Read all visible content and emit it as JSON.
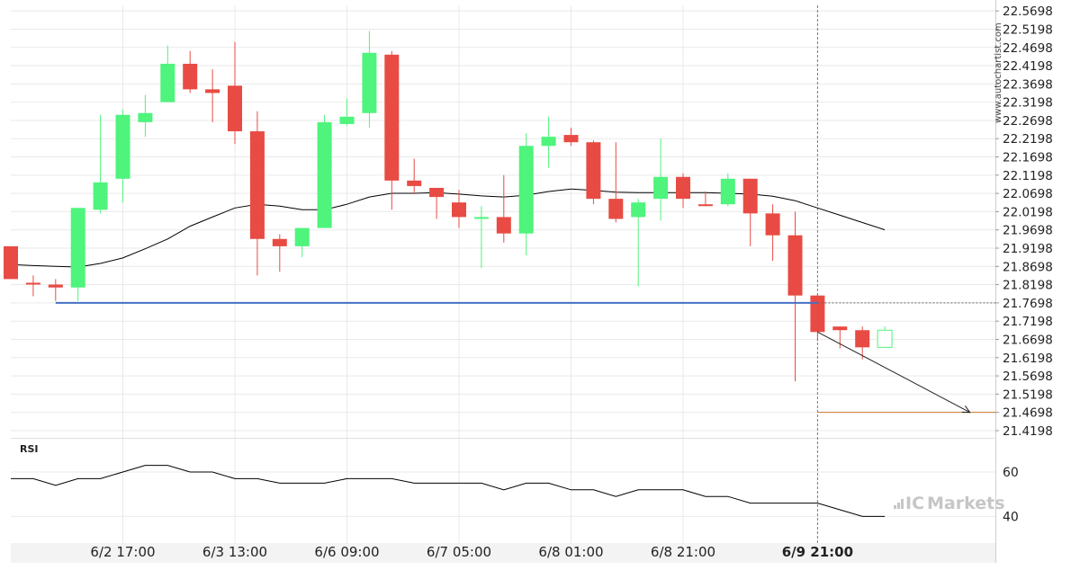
{
  "chart_data": {
    "type": "candlestick",
    "y_axis": {
      "ticks": [
        "22.5698",
        "22.5198",
        "22.4698",
        "22.4198",
        "22.3698",
        "22.3198",
        "22.2698",
        "22.2198",
        "22.1698",
        "22.1198",
        "22.0698",
        "22.0198",
        "21.9698",
        "21.9198",
        "21.8698",
        "21.8198",
        "21.7698",
        "21.7198",
        "21.6698",
        "21.6198",
        "21.5698",
        "21.5198",
        "21.4698",
        "21.4198"
      ],
      "range": [
        21.4,
        22.585
      ],
      "position": "right"
    },
    "x_axis": {
      "ticks": [
        {
          "label": "6/2 17:00",
          "index": 5
        },
        {
          "label": "6/3 13:00",
          "index": 10
        },
        {
          "label": "6/6 09:00",
          "index": 15
        },
        {
          "label": "6/7 05:00",
          "index": 20
        },
        {
          "label": "6/8 01:00",
          "index": 25
        },
        {
          "label": "6/8 21:00",
          "index": 30
        },
        {
          "label": "6/9 21:00",
          "index": 36,
          "highlighted": true
        }
      ]
    },
    "candles": [
      {
        "o": 21.925,
        "h": 21.925,
        "c": 21.835,
        "l": 21.835
      },
      {
        "o": 21.825,
        "h": 21.845,
        "c": 21.822,
        "l": 21.788
      },
      {
        "o": 21.82,
        "h": 21.835,
        "c": 21.812,
        "l": 21.775
      },
      {
        "o": 21.812,
        "h": 22.03,
        "c": 22.03,
        "l": 21.775
      },
      {
        "o": 22.025,
        "h": 22.285,
        "c": 22.1,
        "l": 22.015
      },
      {
        "o": 22.11,
        "h": 22.3,
        "c": 22.285,
        "l": 22.045
      },
      {
        "o": 22.265,
        "h": 22.34,
        "c": 22.29,
        "l": 22.225
      },
      {
        "o": 22.32,
        "h": 22.475,
        "c": 22.425,
        "l": 22.32
      },
      {
        "o": 22.425,
        "h": 22.46,
        "c": 22.355,
        "l": 22.345
      },
      {
        "o": 22.355,
        "h": 22.41,
        "c": 22.345,
        "l": 22.265
      },
      {
        "o": 22.365,
        "h": 22.485,
        "c": 22.24,
        "l": 22.205
      },
      {
        "o": 22.24,
        "h": 22.295,
        "c": 21.945,
        "l": 21.845
      },
      {
        "o": 21.945,
        "h": 21.958,
        "c": 21.925,
        "l": 21.855
      },
      {
        "o": 21.925,
        "h": 21.975,
        "c": 21.975,
        "l": 21.895
      },
      {
        "o": 21.975,
        "h": 22.285,
        "c": 22.265,
        "l": 21.975
      },
      {
        "o": 22.26,
        "h": 22.33,
        "c": 22.28,
        "l": 22.255
      },
      {
        "o": 22.29,
        "h": 22.515,
        "c": 22.455,
        "l": 22.25
      },
      {
        "o": 22.45,
        "h": 22.46,
        "c": 22.105,
        "l": 22.025
      },
      {
        "o": 22.105,
        "h": 22.165,
        "c": 22.09,
        "l": 22.07
      },
      {
        "o": 22.085,
        "h": 22.085,
        "c": 22.06,
        "l": 22.0
      },
      {
        "o": 22.045,
        "h": 22.08,
        "c": 22.005,
        "l": 21.975
      },
      {
        "o": 22.005,
        "h": 22.035,
        "c": 22.005,
        "l": 21.865
      },
      {
        "o": 22.005,
        "h": 22.12,
        "c": 21.96,
        "l": 21.935
      },
      {
        "o": 21.96,
        "h": 22.235,
        "c": 22.2,
        "l": 21.9
      },
      {
        "o": 22.2,
        "h": 22.28,
        "c": 22.225,
        "l": 22.14
      },
      {
        "o": 22.23,
        "h": 22.25,
        "c": 22.21,
        "l": 22.2
      },
      {
        "o": 22.21,
        "h": 22.215,
        "c": 22.055,
        "l": 22.04
      },
      {
        "o": 22.055,
        "h": 22.21,
        "c": 22.0,
        "l": 21.99
      },
      {
        "o": 22.005,
        "h": 22.055,
        "c": 22.045,
        "l": 21.815
      },
      {
        "o": 22.055,
        "h": 22.22,
        "c": 22.115,
        "l": 21.995
      },
      {
        "o": 22.115,
        "h": 22.125,
        "c": 22.055,
        "l": 22.03
      },
      {
        "o": 22.04,
        "h": 22.075,
        "c": 22.035,
        "l": 22.035
      },
      {
        "o": 22.04,
        "h": 22.125,
        "c": 22.11,
        "l": 22.035
      },
      {
        "o": 22.11,
        "h": 22.11,
        "c": 22.015,
        "l": 21.925
      },
      {
        "o": 22.015,
        "h": 22.04,
        "c": 21.955,
        "l": 21.885
      },
      {
        "o": 21.955,
        "h": 22.02,
        "c": 21.79,
        "l": 21.555
      },
      {
        "o": 21.79,
        "h": 21.795,
        "c": 21.69,
        "l": 21.665
      },
      {
        "o": 21.705,
        "h": 21.705,
        "c": 21.695,
        "l": 21.645
      },
      {
        "o": 21.695,
        "h": 21.705,
        "c": 21.648,
        "l": 21.615
      },
      {
        "o": 21.648,
        "h": 21.705,
        "c": 21.695,
        "l": 21.648
      }
    ],
    "moving_average": [
      21.875,
      21.872,
      21.87,
      21.868,
      21.878,
      21.893,
      21.918,
      21.945,
      21.98,
      22.005,
      22.03,
      22.04,
      22.035,
      22.025,
      22.025,
      22.04,
      22.06,
      22.07,
      22.07,
      22.072,
      22.068,
      22.063,
      22.06,
      22.065,
      22.075,
      22.082,
      22.078,
      22.073,
      22.072,
      22.072,
      22.072,
      22.072,
      22.07,
      22.068,
      22.062,
      22.05,
      22.03,
      22.01,
      21.99,
      21.97
    ],
    "support_level": 21.7698,
    "support_start_index": 2,
    "target_level": 21.4698,
    "target_start_index": 36,
    "arrow": {
      "from_index": 36,
      "from_value": 21.69,
      "to_index": 43,
      "to_value": 21.4698
    },
    "current_price_line": 21.7698,
    "rsi": {
      "label": "RSI",
      "ticks": [
        60,
        40
      ],
      "range": [
        28,
        75
      ],
      "values": [
        57,
        57,
        54,
        57,
        57,
        60,
        63,
        63,
        60,
        60,
        57,
        57,
        55,
        55,
        55,
        57,
        57,
        57,
        55,
        55,
        55,
        55,
        52,
        55,
        55,
        52,
        52,
        49,
        52,
        52,
        52,
        49,
        49,
        46,
        46,
        46,
        46,
        43,
        40,
        40
      ]
    },
    "colors": {
      "bull": "#4ef47c",
      "bear": "#e84b43",
      "ma": "#000000",
      "support": "#4470c4",
      "target": "#c8782c",
      "grid": "#e9e9e9"
    }
  },
  "watermark": "www.autochartist.com",
  "brand": {
    "prefix": "IC",
    "suffix": "Markets"
  }
}
